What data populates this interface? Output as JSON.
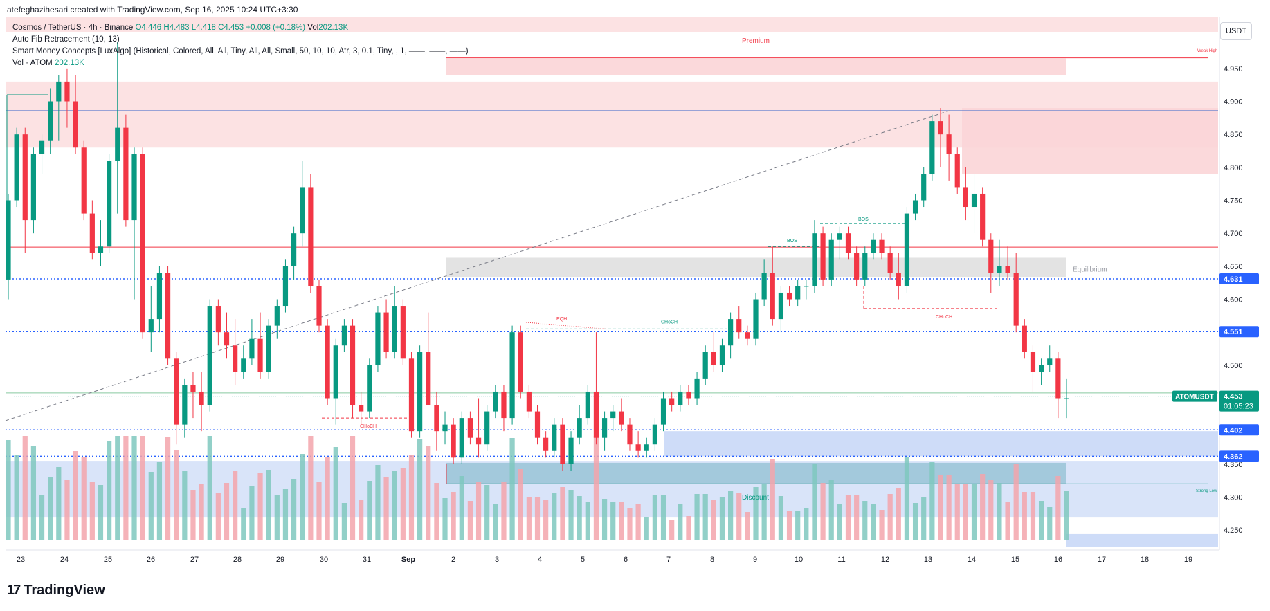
{
  "header": {
    "creator_line": "atefeghazihesari created with TradingView.com, Sep 16, 2025 10:24 UTC+3:30"
  },
  "legend": {
    "symbol": "Cosmos / TetherUS · 4h · Binance",
    "open": "O4.446",
    "high": "H4.483",
    "low": "L4.418",
    "close": "C4.453",
    "change": "+0.008 (+0.18%)",
    "vol": "Vol",
    "vol_value": "202.13K",
    "indicator1": "Auto Fib Retracement (10, 13)",
    "indicator2": "Smart Money Concepts [LuxAlgo] (Historical, Colored, All, All, Tiny, All, All, Small, 50, 10, 10, Atr, 3, 0.1, Tiny, , 1, ——, ——, ——)",
    "indicator3_label": "Vol · ATOM",
    "indicator3_value": "202.13K"
  },
  "axis_unit": "USDT",
  "footer": {
    "brand": "TradingView"
  },
  "colors": {
    "up": "#089981",
    "down": "#f23645",
    "premium_zone": "#fbd5d7",
    "discount_zone": "#c9d8f7",
    "equilibrium_zone": "#e0e0e0",
    "fib_blue": "#2962ff",
    "price_label": "#089981",
    "fib_label": "#2962ff"
  },
  "chart_data": {
    "type": "candlestick",
    "symbol": "ATOMUSDT",
    "timeframe": "4h",
    "ylim": [
      4.22,
      5.0
    ],
    "y_ticks": [
      "4.950",
      "4.900",
      "4.850",
      "4.800",
      "4.750",
      "4.700",
      "4.650",
      "4.600",
      "4.550",
      "4.500",
      "4.450",
      "4.400",
      "4.350",
      "4.300",
      "4.250"
    ],
    "x_ticks": [
      "23",
      "24",
      "25",
      "26",
      "27",
      "28",
      "29",
      "30",
      "31",
      "Sep",
      "2",
      "3",
      "4",
      "5",
      "6",
      "7",
      "8",
      "9",
      "10",
      "11",
      "12",
      "13",
      "14",
      "15",
      "16",
      "17",
      "18",
      "19"
    ],
    "price_labels": [
      {
        "value": 4.631,
        "text": "4.631",
        "kind": "fib"
      },
      {
        "value": 4.551,
        "text": "4.551",
        "kind": "fib"
      },
      {
        "value": 4.402,
        "text": "4.402",
        "kind": "fib"
      },
      {
        "value": 4.362,
        "text": "4.362",
        "kind": "fib"
      }
    ],
    "last_price": {
      "value": 4.453,
      "text": "4.453",
      "countdown": "01:05:23",
      "symbol_tag": "ATOMUSDT"
    },
    "zone_labels": {
      "premium": "Premium",
      "discount": "Discount",
      "equilibrium": "Equilibrium",
      "weak_high": "Weak High",
      "strong_low": "Strong Low"
    },
    "structure_labels": [
      "BOS",
      "BOS",
      "CHoCH",
      "CHoCH",
      "CHoCH",
      "EQH"
    ],
    "candles": [
      [
        4.63,
        4.76,
        4.6,
        4.75
      ],
      [
        4.75,
        4.86,
        4.74,
        4.85
      ],
      [
        4.85,
        4.86,
        4.67,
        4.72
      ],
      [
        4.72,
        4.83,
        4.7,
        4.82
      ],
      [
        4.82,
        4.85,
        4.79,
        4.84
      ],
      [
        4.84,
        4.92,
        4.82,
        4.9
      ],
      [
        4.9,
        4.94,
        4.84,
        4.93
      ],
      [
        4.93,
        4.95,
        4.86,
        4.9
      ],
      [
        4.9,
        4.94,
        4.82,
        4.83
      ],
      [
        4.83,
        4.84,
        4.72,
        4.73
      ],
      [
        4.73,
        4.75,
        4.66,
        4.67
      ],
      [
        4.67,
        4.72,
        4.65,
        4.68
      ],
      [
        4.68,
        4.82,
        4.67,
        4.81
      ],
      [
        4.81,
        4.99,
        4.73,
        4.86
      ],
      [
        4.86,
        4.88,
        4.71,
        4.72
      ],
      [
        4.72,
        4.83,
        4.6,
        4.82
      ],
      [
        4.82,
        4.83,
        4.54,
        4.55
      ],
      [
        4.55,
        4.62,
        4.52,
        4.57
      ],
      [
        4.57,
        4.65,
        4.55,
        4.64
      ],
      [
        4.64,
        4.65,
        4.5,
        4.51
      ],
      [
        4.51,
        4.52,
        4.38,
        4.41
      ],
      [
        4.41,
        4.48,
        4.39,
        4.47
      ],
      [
        4.47,
        4.49,
        4.42,
        4.46
      ],
      [
        4.46,
        4.49,
        4.4,
        4.44
      ],
      [
        4.44,
        4.6,
        4.43,
        4.59
      ],
      [
        4.59,
        4.6,
        4.53,
        4.55
      ],
      [
        4.55,
        4.58,
        4.51,
        4.53
      ],
      [
        4.53,
        4.57,
        4.47,
        4.49
      ],
      [
        4.49,
        4.53,
        4.48,
        4.51
      ],
      [
        4.51,
        4.57,
        4.5,
        4.54
      ],
      [
        4.54,
        4.58,
        4.48,
        4.49
      ],
      [
        4.49,
        4.57,
        4.48,
        4.56
      ],
      [
        4.56,
        4.6,
        4.54,
        4.59
      ],
      [
        4.59,
        4.66,
        4.58,
        4.65
      ],
      [
        4.65,
        4.71,
        4.63,
        4.7
      ],
      [
        4.7,
        4.81,
        4.68,
        4.77
      ],
      [
        4.77,
        4.79,
        4.61,
        4.62
      ],
      [
        4.62,
        4.63,
        4.55,
        4.56
      ],
      [
        4.56,
        4.57,
        4.44,
        4.45
      ],
      [
        4.45,
        4.54,
        4.41,
        4.53
      ],
      [
        4.53,
        4.57,
        4.52,
        4.56
      ],
      [
        4.56,
        4.57,
        4.42,
        4.44
      ],
      [
        4.44,
        4.46,
        4.41,
        4.43
      ],
      [
        4.43,
        4.51,
        4.42,
        4.5
      ],
      [
        4.5,
        4.59,
        4.49,
        4.58
      ],
      [
        4.58,
        4.6,
        4.51,
        4.52
      ],
      [
        4.52,
        4.62,
        4.51,
        4.59
      ],
      [
        4.59,
        4.6,
        4.5,
        4.51
      ],
      [
        4.51,
        4.52,
        4.39,
        4.4
      ],
      [
        4.4,
        4.53,
        4.39,
        4.52
      ],
      [
        4.52,
        4.58,
        4.44,
        4.44
      ],
      [
        4.44,
        4.46,
        4.37,
        4.4
      ],
      [
        4.4,
        4.43,
        4.38,
        4.41
      ],
      [
        4.41,
        4.42,
        4.35,
        4.36
      ],
      [
        4.36,
        4.43,
        4.35,
        4.42
      ],
      [
        4.42,
        4.43,
        4.38,
        4.39
      ],
      [
        4.39,
        4.45,
        4.36,
        4.38
      ],
      [
        4.38,
        4.44,
        4.37,
        4.43
      ],
      [
        4.43,
        4.47,
        4.42,
        4.46
      ],
      [
        4.46,
        4.47,
        4.4,
        4.42
      ],
      [
        4.42,
        4.56,
        4.41,
        4.55
      ],
      [
        4.55,
        4.56,
        4.45,
        4.46
      ],
      [
        4.46,
        4.47,
        4.42,
        4.43
      ],
      [
        4.43,
        4.44,
        4.38,
        4.39
      ],
      [
        4.39,
        4.4,
        4.36,
        4.37
      ],
      [
        4.37,
        4.42,
        4.36,
        4.41
      ],
      [
        4.41,
        4.42,
        4.34,
        4.35
      ],
      [
        4.35,
        4.4,
        4.34,
        4.39
      ],
      [
        4.39,
        4.44,
        4.38,
        4.42
      ],
      [
        4.42,
        4.47,
        4.41,
        4.46
      ],
      [
        4.46,
        4.55,
        4.38,
        4.39
      ],
      [
        4.39,
        4.43,
        4.37,
        4.42
      ],
      [
        4.42,
        4.44,
        4.4,
        4.43
      ],
      [
        4.43,
        4.45,
        4.4,
        4.41
      ],
      [
        4.41,
        4.42,
        4.37,
        4.38
      ],
      [
        4.38,
        4.4,
        4.36,
        4.37
      ],
      [
        4.37,
        4.39,
        4.36,
        4.38
      ],
      [
        4.38,
        4.42,
        4.37,
        4.41
      ],
      [
        4.41,
        4.46,
        4.4,
        4.45
      ],
      [
        4.45,
        4.46,
        4.43,
        4.44
      ],
      [
        4.44,
        4.47,
        4.43,
        4.46
      ],
      [
        4.46,
        4.47,
        4.44,
        4.45
      ],
      [
        4.45,
        4.49,
        4.44,
        4.48
      ],
      [
        4.48,
        4.53,
        4.47,
        4.52
      ],
      [
        4.52,
        4.55,
        4.49,
        4.5
      ],
      [
        4.5,
        4.54,
        4.49,
        4.53
      ],
      [
        4.53,
        4.58,
        4.51,
        4.57
      ],
      [
        4.57,
        4.59,
        4.54,
        4.55
      ],
      [
        4.55,
        4.56,
        4.53,
        4.54
      ],
      [
        4.54,
        4.61,
        4.53,
        4.6
      ],
      [
        4.6,
        4.66,
        4.59,
        4.64
      ],
      [
        4.64,
        4.68,
        4.56,
        4.57
      ],
      [
        4.57,
        4.62,
        4.55,
        4.61
      ],
      [
        4.61,
        4.62,
        4.59,
        4.6
      ],
      [
        4.6,
        4.63,
        4.59,
        4.62
      ],
      [
        4.62,
        4.63,
        4.6,
        4.62
      ],
      [
        4.62,
        4.72,
        4.61,
        4.7
      ],
      [
        4.7,
        4.71,
        4.62,
        4.63
      ],
      [
        4.63,
        4.7,
        4.62,
        4.69
      ],
      [
        4.69,
        4.71,
        4.66,
        4.7
      ],
      [
        4.7,
        4.71,
        4.66,
        4.67
      ],
      [
        4.67,
        4.68,
        4.62,
        4.63
      ],
      [
        4.63,
        4.68,
        4.62,
        4.67
      ],
      [
        4.67,
        4.7,
        4.66,
        4.69
      ],
      [
        4.69,
        4.7,
        4.66,
        4.67
      ],
      [
        4.67,
        4.68,
        4.63,
        4.64
      ],
      [
        4.64,
        4.67,
        4.6,
        4.62
      ],
      [
        4.62,
        4.74,
        4.61,
        4.73
      ],
      [
        4.73,
        4.76,
        4.72,
        4.75
      ],
      [
        4.75,
        4.8,
        4.74,
        4.79
      ],
      [
        4.79,
        4.88,
        4.78,
        4.87
      ],
      [
        4.87,
        4.89,
        4.8,
        4.85
      ],
      [
        4.85,
        4.88,
        4.78,
        4.82
      ],
      [
        4.82,
        4.83,
        4.76,
        4.77
      ],
      [
        4.77,
        4.8,
        4.72,
        4.74
      ],
      [
        4.74,
        4.79,
        4.7,
        4.76
      ],
      [
        4.76,
        4.77,
        4.68,
        4.69
      ],
      [
        4.69,
        4.7,
        4.61,
        4.64
      ],
      [
        4.64,
        4.69,
        4.62,
        4.65
      ],
      [
        4.65,
        4.68,
        4.63,
        4.64
      ],
      [
        4.64,
        4.67,
        4.55,
        4.56
      ],
      [
        4.56,
        4.57,
        4.51,
        4.52
      ],
      [
        4.52,
        4.53,
        4.46,
        4.49
      ],
      [
        4.49,
        4.51,
        4.47,
        4.5
      ],
      [
        4.5,
        4.53,
        4.49,
        4.51
      ],
      [
        4.51,
        4.52,
        4.42,
        4.45
      ],
      [
        4.45,
        4.48,
        4.42,
        4.45
      ]
    ]
  }
}
